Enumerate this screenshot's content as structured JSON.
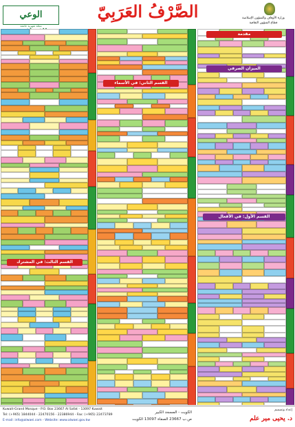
{
  "header": {
    "title": "الصَّرْفُ العَرَبِيّ",
    "ministry": "وزارة الأوقاف والشؤون الإسلامية",
    "sector": "قطاع الشؤون الثقافية",
    "magazine": "الوعي الإسلامي",
    "magazine_tagline": "مجلة شهرية جامعة"
  },
  "sections": [
    {
      "title": "مقدمة"
    },
    {
      "title": "الميزان الصرفي"
    },
    {
      "title": "القسم الأول: في الأفعال"
    },
    {
      "title": "القسم الثاني: في الأسماء"
    },
    {
      "title": "القسم الثالث: في المشترك"
    }
  ],
  "footer": {
    "address": "Kuwait-Grand Mosque - P.O. Box 23667 Al Safat - 13097 Kuwait",
    "phone": "Tel: (+965) 1844044 - 22470156 - 22386944 - Fax: (+965) 22473789",
    "email": "E-mail: info@alwaei.com - Website: www.alwaei.gov.kw",
    "address_ar": "الكويت - المسجد الكبير",
    "po_box_ar": "ص.ب 23667 الصفاة 13097 الكويت",
    "credit_label": "إعداد وتصميم",
    "author": "د. يحيى مير علم"
  }
}
